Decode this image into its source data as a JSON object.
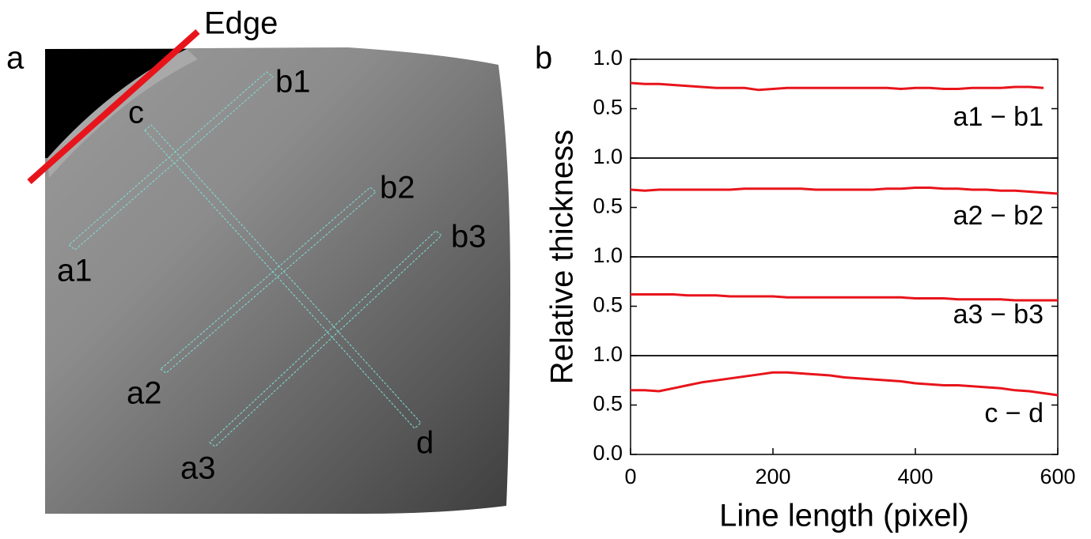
{
  "panel_labels": [
    "a",
    "b"
  ],
  "image_labels": [
    "Edge",
    "b1",
    "c",
    "b2",
    "b3",
    "a1",
    "a2",
    "d",
    "a3"
  ],
  "chart_data": [
    {
      "type": "line",
      "x": [
        0,
        20,
        40,
        60,
        80,
        100,
        120,
        140,
        160,
        180,
        200,
        220,
        240,
        260,
        280,
        300,
        320,
        340,
        360,
        380,
        400,
        420,
        440,
        460,
        480,
        500,
        520,
        540,
        560,
        580
      ],
      "series": [
        {
          "name": "a1 − b1",
          "color": "#e8141b",
          "values": [
            0.76,
            0.75,
            0.75,
            0.74,
            0.73,
            0.72,
            0.71,
            0.71,
            0.71,
            0.69,
            0.7,
            0.71,
            0.71,
            0.71,
            0.71,
            0.71,
            0.71,
            0.71,
            0.71,
            0.7,
            0.71,
            0.71,
            0.7,
            0.7,
            0.71,
            0.71,
            0.71,
            0.72,
            0.72,
            0.71
          ]
        }
      ],
      "xlim": [
        0,
        600
      ],
      "ylim": [
        0,
        1.0
      ],
      "yticks": [
        0.5,
        {
          "value": 1,
          "label": "1.0"
        }
      ]
    },
    {
      "type": "line",
      "x": [
        0,
        20,
        40,
        60,
        80,
        100,
        120,
        140,
        160,
        180,
        200,
        220,
        240,
        260,
        280,
        300,
        320,
        340,
        360,
        380,
        400,
        420,
        440,
        460,
        480,
        500,
        520,
        540,
        560,
        580,
        600
      ],
      "series": [
        {
          "name": "a2 − b2",
          "color": "#e8141b",
          "values": [
            0.68,
            0.67,
            0.68,
            0.68,
            0.68,
            0.68,
            0.68,
            0.68,
            0.69,
            0.69,
            0.69,
            0.69,
            0.69,
            0.68,
            0.68,
            0.68,
            0.68,
            0.68,
            0.69,
            0.69,
            0.7,
            0.7,
            0.69,
            0.69,
            0.68,
            0.68,
            0.67,
            0.67,
            0.66,
            0.65,
            0.64
          ]
        }
      ],
      "xlim": [
        0,
        600
      ],
      "ylim": [
        0,
        1.0
      ],
      "yticks": [
        0.5,
        {
          "value": 1,
          "label": "1.0"
        }
      ],
      "ylabel": "Relative thickness"
    },
    {
      "type": "line",
      "x": [
        0,
        20,
        40,
        60,
        80,
        100,
        120,
        140,
        160,
        180,
        200,
        220,
        240,
        260,
        280,
        300,
        320,
        340,
        360,
        380,
        400,
        420,
        440,
        460,
        480,
        500,
        520,
        540,
        560,
        580,
        600
      ],
      "series": [
        {
          "name": "a3 − b3",
          "color": "#e8141b",
          "values": [
            0.62,
            0.62,
            0.62,
            0.62,
            0.61,
            0.61,
            0.61,
            0.6,
            0.6,
            0.6,
            0.6,
            0.59,
            0.59,
            0.59,
            0.59,
            0.59,
            0.59,
            0.59,
            0.59,
            0.59,
            0.58,
            0.58,
            0.58,
            0.57,
            0.57,
            0.57,
            0.57,
            0.56,
            0.56,
            0.56,
            0.56
          ]
        }
      ],
      "xlim": [
        0,
        600
      ],
      "ylim": [
        0,
        1.0
      ],
      "yticks": [
        0.5,
        {
          "value": 1,
          "label": "1.0"
        }
      ]
    },
    {
      "type": "line",
      "x": [
        0,
        20,
        40,
        60,
        80,
        100,
        120,
        140,
        160,
        180,
        200,
        220,
        240,
        260,
        280,
        300,
        320,
        340,
        360,
        380,
        400,
        420,
        440,
        460,
        480,
        500,
        520,
        540,
        560,
        580,
        600
      ],
      "series": [
        {
          "name": "c − d",
          "color": "#e8141b",
          "values": [
            0.65,
            0.65,
            0.64,
            0.67,
            0.7,
            0.73,
            0.75,
            0.77,
            0.79,
            0.81,
            0.83,
            0.83,
            0.82,
            0.81,
            0.8,
            0.78,
            0.77,
            0.76,
            0.75,
            0.74,
            0.72,
            0.71,
            0.7,
            0.7,
            0.69,
            0.68,
            0.67,
            0.65,
            0.64,
            0.62,
            0.6
          ]
        }
      ],
      "xlim": [
        0,
        600
      ],
      "ylim": [
        0,
        1.0
      ],
      "yticks": [
        {
          "value": 0,
          "label": "0.0"
        },
        0.5,
        {
          "value": 1,
          "label": "1.0"
        }
      ],
      "xticks": [
        0,
        200,
        400,
        600
      ],
      "xlabel": "Line length (pixel)"
    }
  ]
}
